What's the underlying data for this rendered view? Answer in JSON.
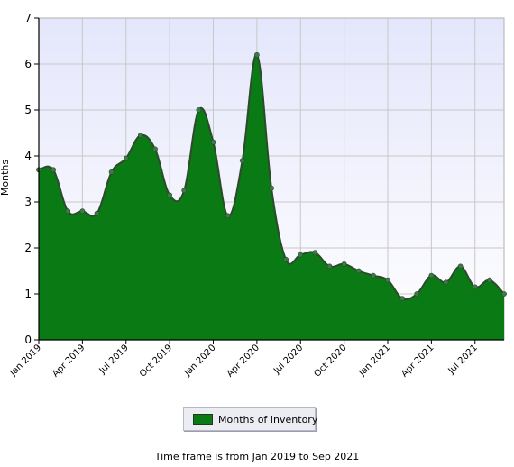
{
  "chart_data": {
    "type": "area",
    "ylabel": "Months",
    "ylim": [
      0,
      7
    ],
    "yticks": [
      0,
      1,
      2,
      3,
      4,
      5,
      6,
      7
    ],
    "x_tick_labels": [
      "Jan 2019",
      "Apr 2019",
      "Jul 2019",
      "Oct 2019",
      "Jan 2020",
      "Apr 2020",
      "Jul 2020",
      "Oct 2020",
      "Jan 2021",
      "Apr 2021",
      "Jul 2021"
    ],
    "grid": true,
    "legend_placement": "bottom-center",
    "series": [
      {
        "name": "Months of Inventory",
        "color": "#0a7a14",
        "x": [
          "Jan 2019",
          "Feb 2019",
          "Mar 2019",
          "Apr 2019",
          "May 2019",
          "Jun 2019",
          "Jul 2019",
          "Aug 2019",
          "Sep 2019",
          "Oct 2019",
          "Nov 2019",
          "Dec 2019",
          "Jan 2020",
          "Feb 2020",
          "Mar 2020",
          "Apr 2020",
          "May 2020",
          "Jun 2020",
          "Jul 2020",
          "Aug 2020",
          "Sep 2020",
          "Oct 2020",
          "Nov 2020",
          "Dec 2020",
          "Jan 2021",
          "Feb 2021",
          "Mar 2021",
          "Apr 2021",
          "May 2021",
          "Jun 2021",
          "Jul 2021",
          "Aug 2021",
          "Sep 2021"
        ],
        "values": [
          3.7,
          3.7,
          2.8,
          2.8,
          2.75,
          3.65,
          3.95,
          4.45,
          4.15,
          3.15,
          3.25,
          5.0,
          4.3,
          2.7,
          3.9,
          6.2,
          3.3,
          1.75,
          1.85,
          1.9,
          1.6,
          1.65,
          1.5,
          1.4,
          1.3,
          0.9,
          1.0,
          1.4,
          1.25,
          1.6,
          1.15,
          1.3,
          1.0
        ]
      }
    ]
  },
  "legend": {
    "label": "Months of Inventory"
  },
  "footer": {
    "text": "Time frame is from Jan 2019 to Sep 2021"
  }
}
